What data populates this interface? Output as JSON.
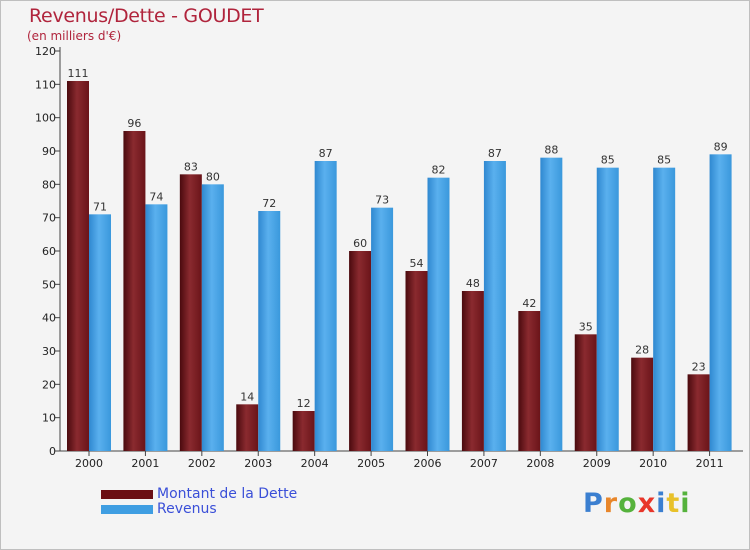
{
  "header": {
    "title": "Revenus/Dette - GOUDET",
    "subtitle": "(en milliers d'€)"
  },
  "colors": {
    "debt": "#7a1a1f",
    "revenue": "#3f9ee2"
  },
  "legend": {
    "items": [
      {
        "label": "Montant de la Dette",
        "color": "#6b0f14"
      },
      {
        "label": "Revenus",
        "color": "#3f9ee2"
      }
    ]
  },
  "logo": {
    "letters": [
      {
        "ch": "P",
        "color": "#3b7fd0"
      },
      {
        "ch": "r",
        "color": "#e8862a"
      },
      {
        "ch": "o",
        "color": "#55b23c"
      },
      {
        "ch": "x",
        "color": "#e8362a"
      },
      {
        "ch": "i",
        "color": "#3b7fd0"
      },
      {
        "ch": "t",
        "color": "#e8c12a"
      },
      {
        "ch": "i",
        "color": "#55b23c"
      }
    ]
  },
  "chart_data": {
    "type": "bar",
    "title": "Revenus/Dette - GOUDET",
    "subtitle": "(en milliers d'€)",
    "categories": [
      "2000",
      "2001",
      "2002",
      "2003",
      "2004",
      "2005",
      "2006",
      "2007",
      "2008",
      "2009",
      "2010",
      "2011"
    ],
    "series": [
      {
        "name": "Montant de la Dette",
        "values": [
          111,
          96,
          83,
          14,
          12,
          60,
          54,
          48,
          42,
          35,
          28,
          23
        ]
      },
      {
        "name": "Revenus",
        "values": [
          71,
          74,
          80,
          72,
          87,
          73,
          82,
          87,
          88,
          85,
          85,
          89
        ]
      }
    ],
    "ylim": [
      0,
      120
    ],
    "yticks": [
      0,
      10,
      20,
      30,
      40,
      50,
      60,
      70,
      80,
      90,
      100,
      110,
      120
    ],
    "grid": false,
    "legend_position": "bottom-left"
  }
}
